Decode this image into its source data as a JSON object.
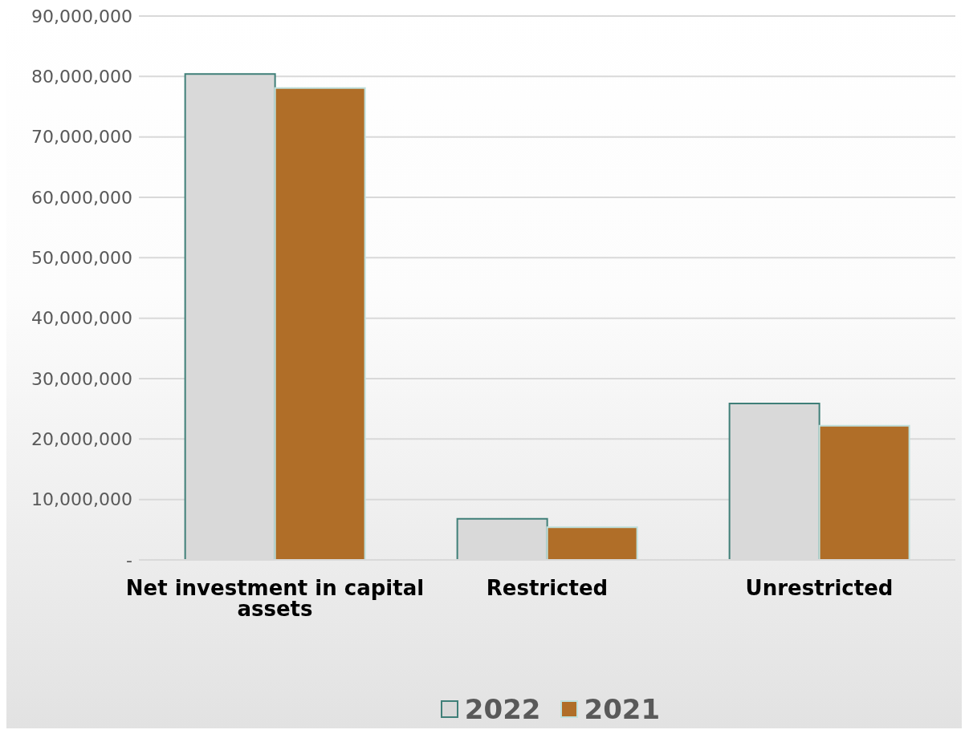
{
  "chart_data": {
    "type": "bar",
    "categories": [
      "Net investment in capital assets",
      "Restricted",
      "Unrestricted"
    ],
    "series": [
      {
        "name": "2022",
        "color": "#d9d9d9",
        "values": [
          80400000,
          6800000,
          25900000
        ]
      },
      {
        "name": "2021",
        "color": "#b06e28",
        "values": [
          78100000,
          5400000,
          22200000
        ]
      }
    ],
    "ylim": [
      0,
      90000000
    ],
    "yticks": [
      {
        "value": 0,
        "label": "-"
      },
      {
        "value": 10000000,
        "label": "10,000,000"
      },
      {
        "value": 20000000,
        "label": "20,000,000"
      },
      {
        "value": 30000000,
        "label": "30,000,000"
      },
      {
        "value": 40000000,
        "label": "40,000,000"
      },
      {
        "value": 50000000,
        "label": "50,000,000"
      },
      {
        "value": 60000000,
        "label": "60,000,000"
      },
      {
        "value": 70000000,
        "label": "70,000,000"
      },
      {
        "value": 80000000,
        "label": "80,000,000"
      },
      {
        "value": 90000000,
        "label": "90,000,000"
      }
    ],
    "grid": "y",
    "legend": "bottom"
  }
}
